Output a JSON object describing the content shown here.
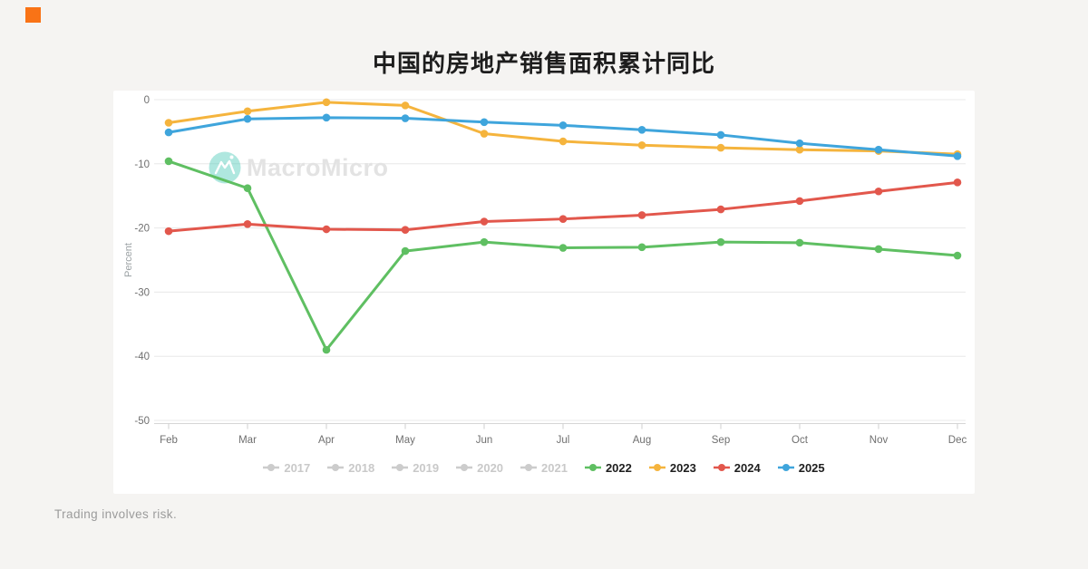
{
  "page": {
    "title": "中国的房地产销售面积累计同比",
    "footer_note": "Trading involves risk.",
    "background": "#f5f4f2",
    "card_background": "#ffffff",
    "brand_square_color": "#f97316",
    "watermark": {
      "text": "MacroMicro",
      "logo_name": "macromicro-mountain-logo",
      "logo_color": "#4ec9b8",
      "text_color": "#e3e3e3"
    }
  },
  "chart_data": {
    "type": "line",
    "title": "中国的房地产销售面积累计同比",
    "xlabel": "",
    "ylabel": "Percent",
    "ylim": [
      -50,
      0
    ],
    "yticks": [
      0,
      -10,
      -20,
      -30,
      -40,
      -50
    ],
    "categories": [
      "Feb",
      "Mar",
      "Apr",
      "May",
      "Jun",
      "Jul",
      "Aug",
      "Sep",
      "Oct",
      "Nov",
      "Dec"
    ],
    "grid": true,
    "legend_position": "bottom",
    "axis_text_color": "#6f6f6f",
    "ylabel_color": "#9aa0a3",
    "grid_color": "#e8e8e8",
    "axis_line_color": "#d6d6d6",
    "tick_color": "#cfcfcf",
    "disabled_color": "#cccccc",
    "disabled_text_color": "#c9c9c9",
    "legend_text_color": "#1e1e1e",
    "series": [
      {
        "name": "2017",
        "enabled": false,
        "values": null
      },
      {
        "name": "2018",
        "enabled": false,
        "values": null
      },
      {
        "name": "2019",
        "enabled": false,
        "values": null
      },
      {
        "name": "2020",
        "enabled": false,
        "values": null
      },
      {
        "name": "2021",
        "enabled": false,
        "values": null
      },
      {
        "name": "2022",
        "enabled": true,
        "color": "#5fbf62",
        "values": [
          -9.6,
          -13.8,
          -39.0,
          -23.6,
          -22.2,
          -23.1,
          -23.0,
          -22.2,
          -22.3,
          -23.3,
          -24.3
        ]
      },
      {
        "name": "2023",
        "enabled": true,
        "color": "#f5b43d",
        "values": [
          -3.6,
          -1.8,
          -0.4,
          -0.9,
          -5.3,
          -6.5,
          -7.1,
          -7.5,
          -7.8,
          -8.0,
          -8.5
        ]
      },
      {
        "name": "2024",
        "enabled": true,
        "color": "#e2574c",
        "values": [
          -20.5,
          -19.4,
          -20.2,
          -20.3,
          -19.0,
          -18.6,
          -18.0,
          -17.1,
          -15.8,
          -14.3,
          -12.9
        ]
      },
      {
        "name": "2025",
        "enabled": true,
        "color": "#3fa5dc",
        "values": [
          -5.1,
          -3.0,
          -2.8,
          -2.9,
          -3.5,
          -4.0,
          -4.7,
          -5.5,
          -6.8,
          -7.8,
          -8.8
        ]
      }
    ]
  }
}
